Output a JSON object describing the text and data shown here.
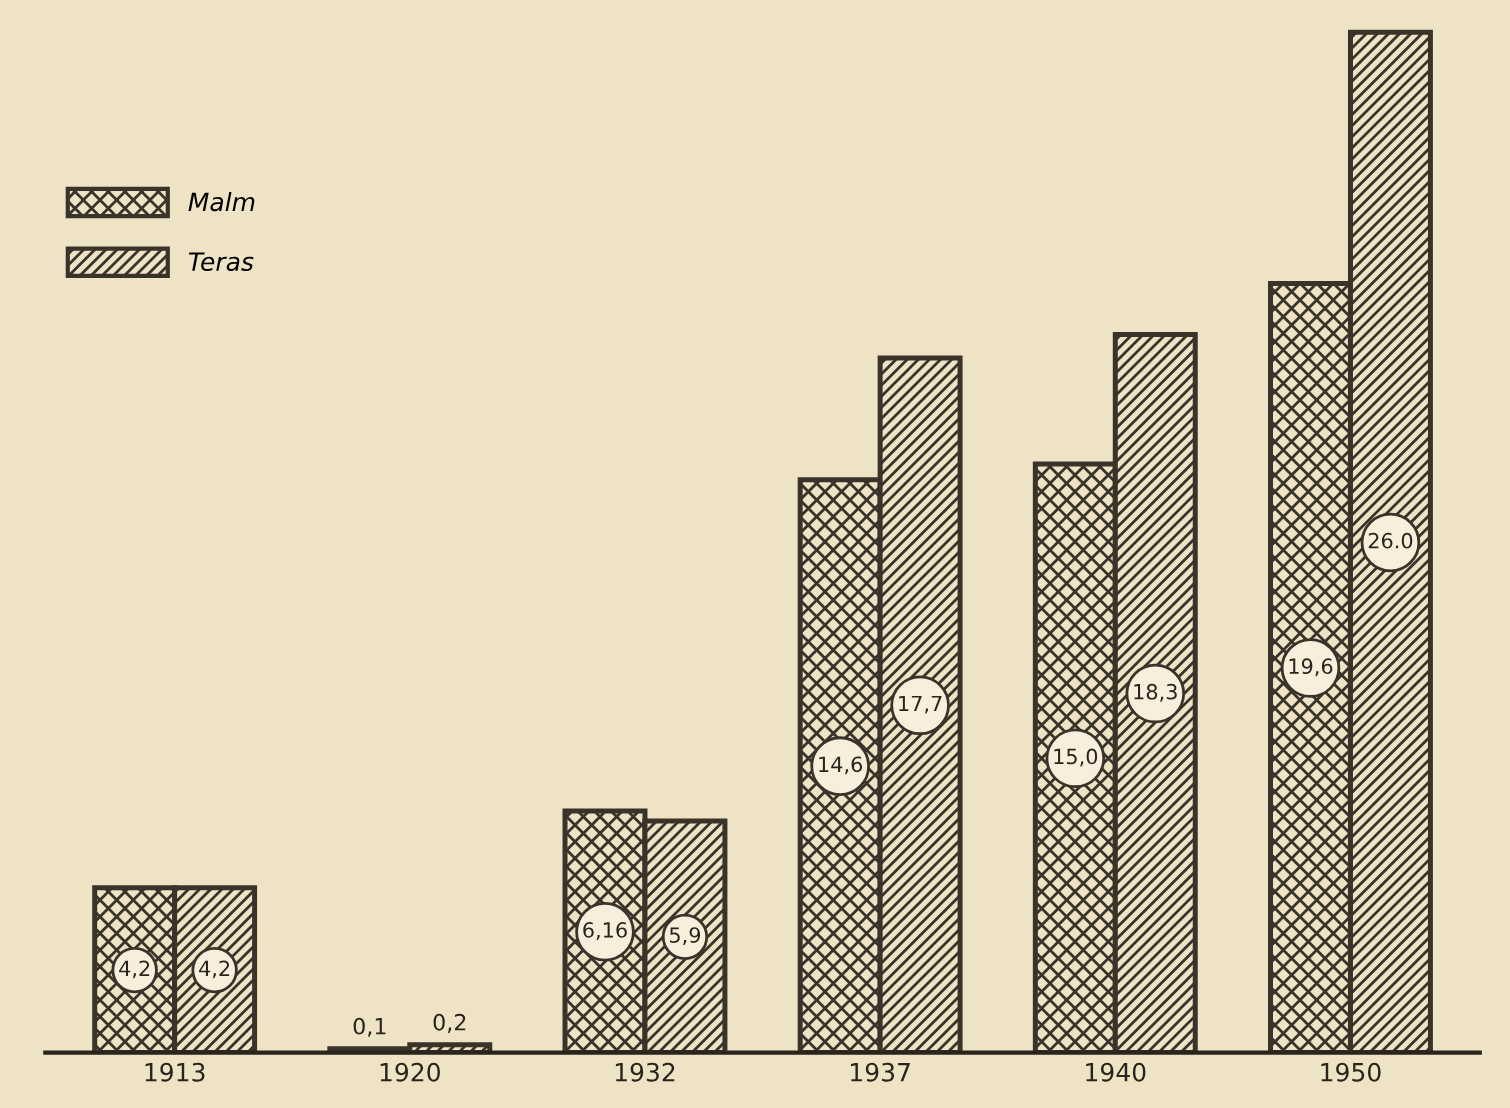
{
  "chart_data": {
    "type": "bar",
    "categories": [
      "1913",
      "1920",
      "1932",
      "1937",
      "1940",
      "1950"
    ],
    "series": [
      {
        "name": "Malm",
        "color": "#3a332a",
        "values": [
          4.2,
          0.1,
          6.16,
          14.6,
          15.0,
          19.6
        ],
        "value_labels": [
          "4,2",
          "0,1",
          "6,16",
          "14,6",
          "15,0",
          "19,6"
        ]
      },
      {
        "name": "Teras",
        "color": "#3a332a",
        "values": [
          4.2,
          0.2,
          5.9,
          17.7,
          18.3,
          26.0
        ],
        "value_labels": [
          "4,2",
          "0,2",
          "5,9",
          "17,7",
          "18,3",
          "26.0"
        ]
      }
    ],
    "legend": "top left",
    "grid": false
  }
}
